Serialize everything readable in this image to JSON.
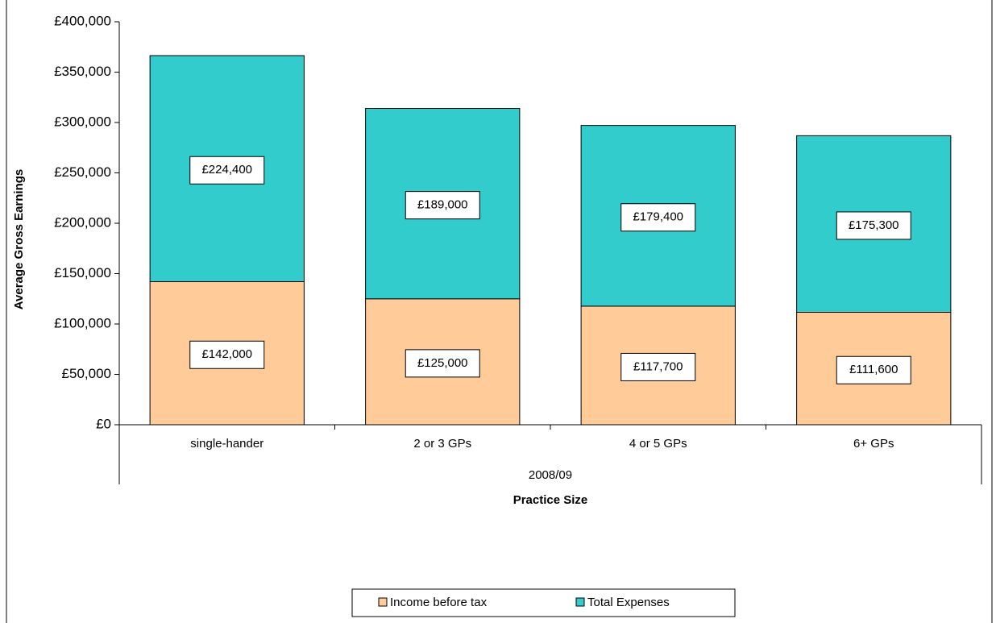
{
  "chart_data": {
    "type": "stacked-bar",
    "categories": [
      "single-hander",
      "2 or 3 GPs",
      "4 or 5 GPs",
      "6+ GPs"
    ],
    "category_group": "2008/09",
    "x_label": "Practice Size",
    "y_label": "Average Gross Earnings",
    "series": [
      {
        "name": "Income before tax",
        "color": "#FFCC99",
        "values": [
          142000,
          125000,
          117700,
          111600
        ],
        "value_labels": [
          "£142,000",
          "£125,000",
          "£117,700",
          "£111,600"
        ]
      },
      {
        "name": "Total Expenses",
        "color": "#33CCCC",
        "values": [
          224400,
          189000,
          179400,
          175300
        ],
        "value_labels": [
          "£224,400",
          "£189,000",
          "£179,400",
          "£175,300"
        ]
      }
    ],
    "ylim": [
      0,
      400000
    ],
    "yticks": [
      {
        "value": 0,
        "label": "£0"
      },
      {
        "value": 50000,
        "label": "£50,000"
      },
      {
        "value": 100000,
        "label": "£100,000"
      },
      {
        "value": 150000,
        "label": "£150,000"
      },
      {
        "value": 200000,
        "label": "£200,000"
      },
      {
        "value": 250000,
        "label": "£250,000"
      },
      {
        "value": 300000,
        "label": "£300,000"
      },
      {
        "value": 350000,
        "label": "£350,000"
      },
      {
        "value": 400000,
        "label": "£400,000"
      }
    ],
    "legend": "bottom"
  }
}
